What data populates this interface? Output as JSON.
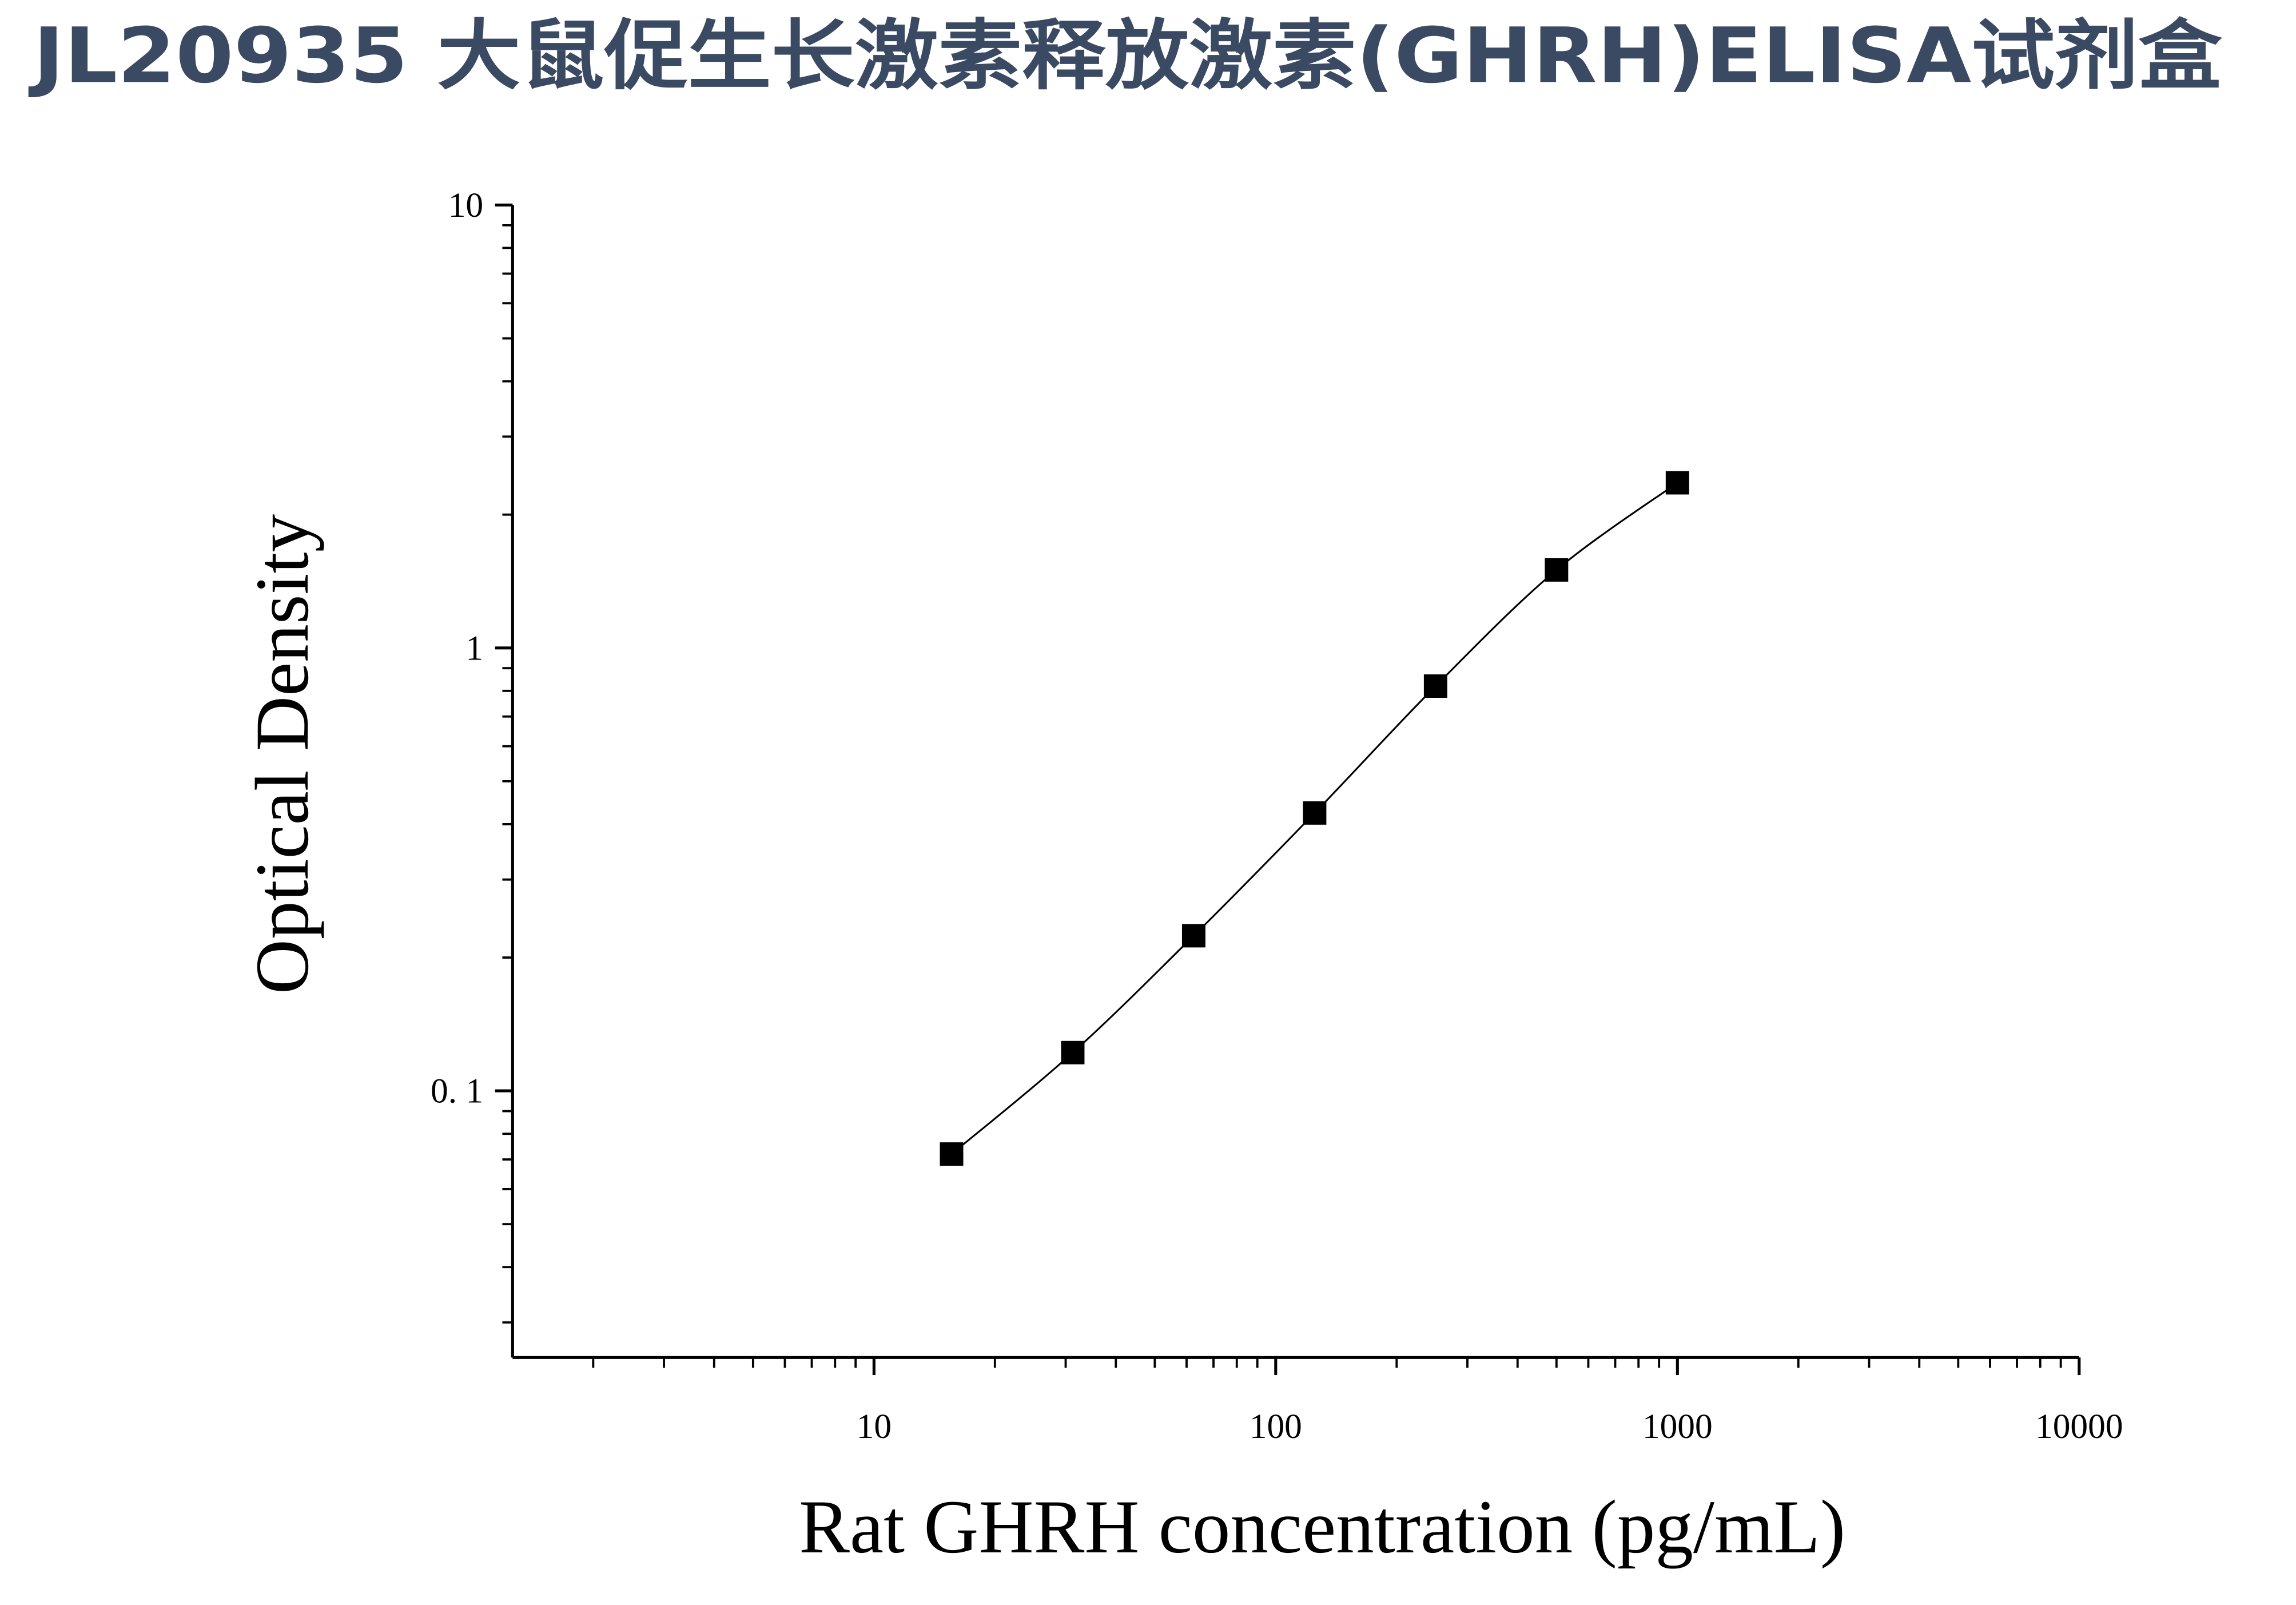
{
  "chart_data": {
    "type": "scatter",
    "title": "JL20935 大鼠促生长激素释放激素(GHRH)ELISA试剂盒",
    "x_label": "Rat GHRH concentration (pg/mL)",
    "y_label": "Optical Density",
    "x": [
      15.6,
      31.25,
      62.5,
      125,
      250,
      500,
      1000
    ],
    "values": [
      0.072,
      0.122,
      0.224,
      0.424,
      0.82,
      1.5,
      2.36
    ],
    "color": "#000000",
    "x_log": true,
    "y_log": true,
    "xlim": [
      1.26,
      10000
    ],
    "ylim": [
      0.025,
      10
    ],
    "xticks": [
      10,
      100,
      1000,
      10000
    ],
    "yticks": [
      {
        "value": 0.1,
        "label": "0. 1"
      },
      1,
      10
    ],
    "grid": false
  }
}
